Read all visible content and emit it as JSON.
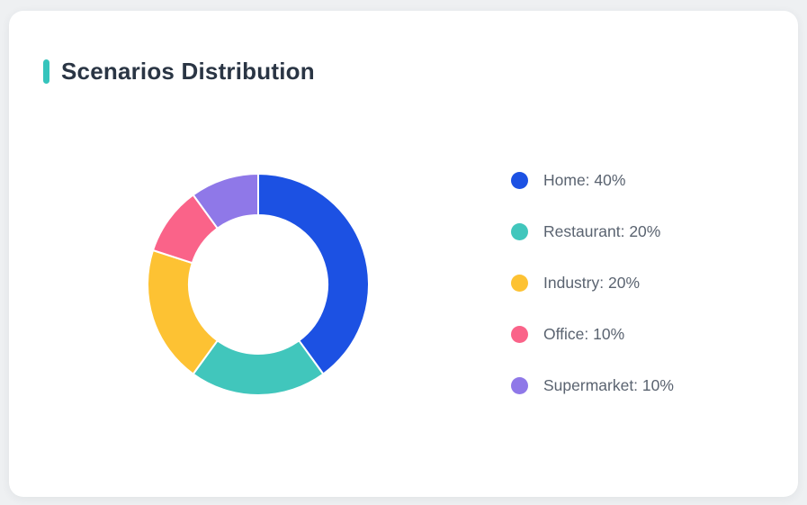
{
  "page": {
    "background_color": "#eef0f2",
    "card_background": "#ffffff"
  },
  "header": {
    "title": "Scenarios Distribution",
    "accent_color": "#35c4bc",
    "title_color": "#2a3544"
  },
  "chart_data": {
    "type": "pie",
    "style": "donut",
    "title": "Scenarios Distribution",
    "categories": [
      "Home",
      "Restaurant",
      "Industry",
      "Office",
      "Supermarket"
    ],
    "values": [
      40,
      20,
      20,
      10,
      10
    ],
    "unit": "%",
    "colors": [
      "#1c51e3",
      "#41c6bc",
      "#fdc233",
      "#fa6389",
      "#8f78e8"
    ],
    "legend_labels": [
      "Home: 40%",
      "Restaurant: 20%",
      "Industry: 20%",
      "Office: 10%",
      "Supermarket: 10%"
    ],
    "legend_position": "right",
    "start_angle_deg": 0,
    "direction": "clockwise",
    "outer_radius": 123,
    "inner_radius": 77,
    "segment_gap_color": "#ffffff"
  }
}
